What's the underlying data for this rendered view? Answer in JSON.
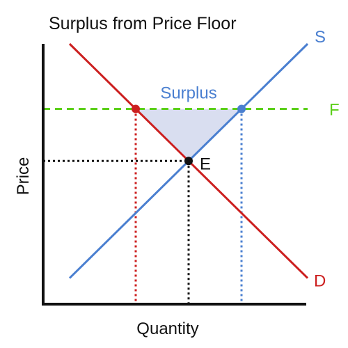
{
  "chart_data": {
    "type": "line",
    "title": "Surplus from Price Floor",
    "xlabel": "Quantity",
    "ylabel": "Price",
    "xlim": [
      0,
      10
    ],
    "ylim": [
      0,
      10
    ],
    "grid": false,
    "series": [
      {
        "name": "S",
        "color": "#4a7fd0",
        "x": [
          1,
          10
        ],
        "y": [
          1,
          10
        ]
      },
      {
        "name": "D",
        "color": "#cc1f1f",
        "x": [
          1,
          10
        ],
        "y": [
          10,
          1
        ]
      }
    ],
    "price_floor": {
      "name": "F",
      "y": 7.5,
      "color": "#5ccf1a"
    },
    "equilibrium": {
      "label": "E",
      "x": 5.5,
      "y": 5.5
    },
    "floor_demand_point": {
      "x": 3.5,
      "y": 7.5
    },
    "floor_supply_point": {
      "x": 7.5,
      "y": 7.5
    },
    "surplus": {
      "label": "Surplus",
      "fill": "#d9def0",
      "label_color": "#4a7fd0"
    }
  }
}
